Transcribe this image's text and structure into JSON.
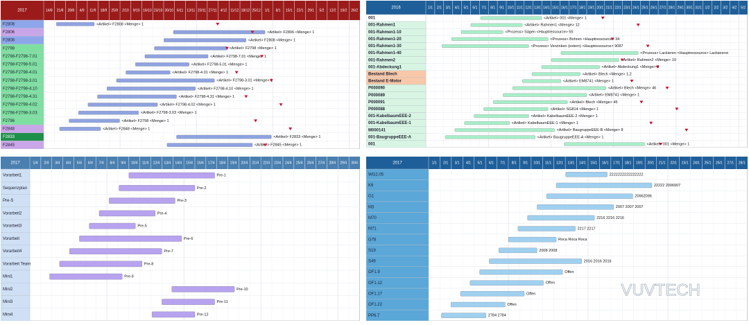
{
  "panels": [
    {
      "year": "2017",
      "header_color": "#9b1b1b",
      "bar_color": "#8fa3e0",
      "columns": [
        "14/8",
        "21/8",
        "28/8",
        "4/9",
        "11/9",
        "18/9",
        "25/9",
        "2/10",
        "9/10",
        "16/10",
        "23/10",
        "30/10",
        "6/11",
        "13/11",
        "20/11",
        "27/11",
        "4/12",
        "11/12",
        "18/12",
        "25/12",
        "1/1",
        "8/1",
        "15/1",
        "22/1",
        "29/1",
        "5/2",
        "12/2",
        "19/2",
        "26/2"
      ],
      "rows": [
        {
          "label": "F2808",
          "color": "#8da6ea",
          "bar": "<Artikel> F2808 <Menge> 1"
        },
        {
          "label": "F2806",
          "color": "#c9a6e8",
          "bar": "<Artikel> F2806 <Menge> 1"
        },
        {
          "label": "F2808",
          "color": "#8da6ea",
          "bar": "<Artikel> F2808 <Menge> 1"
        },
        {
          "label": "F2798",
          "color": "#7ee0a0",
          "bar": "<Artikel> F2798 <Menge> 1"
        },
        {
          "label": "F2798-F2798-7.01",
          "color": "#7ee0a0",
          "bar": "<Artikel> F2798-7.01 <Menge> 1"
        },
        {
          "label": "F2798-F2798-5.01",
          "color": "#7ee0a0",
          "bar": "<Artikel> F2798-5.01 <Menge> 1"
        },
        {
          "label": "F2798-F2798-4.01",
          "color": "#7ee0a0",
          "bar": "<Artikel> F2798-4.01 <Menge> 1"
        },
        {
          "label": "F2798-F2798-3.01",
          "color": "#7ee0a0",
          "bar": "<Artikel> F2798-3.01 <Menge> 1"
        },
        {
          "label": "F2798-F2798-4.10",
          "color": "#7ee0a0",
          "bar": "<Artikel> F2798-4.10 <Menge> 1"
        },
        {
          "label": "F2798-F2798-4.31",
          "color": "#7ee0a0",
          "bar": "<Artikel> F2798-4.31 <Menge> 1"
        },
        {
          "label": "F2798-F2798-4.02",
          "color": "#7ee0a0",
          "bar": "<Artikel> F2798-4.02 <Menge> 1"
        },
        {
          "label": "F2798-F2798-3.03",
          "color": "#7ee0a0",
          "bar": "<Artikel> F2798-3.03 <Menge> 1"
        },
        {
          "label": "F2796",
          "color": "#7ee0a0",
          "bar": "<Artikel> F2798 <Menge> 1"
        },
        {
          "label": "F2848",
          "color": "#c9a6e8",
          "bar": "<Artikel> F2848 <Menge> 1"
        },
        {
          "label": "F2833",
          "color": "#1e8f4a",
          "bar": "<Artikel> F2833 <Menge> 1"
        },
        {
          "label": "F2845",
          "color": "#c9a6e8",
          "bar": "<Artikel> F2845 <Menge> 1"
        }
      ]
    },
    {
      "year": "2016",
      "header_color": "#1f5f99",
      "bar_color": "#a8efc8",
      "columns": [
        "1/1",
        "2/1",
        "3/1",
        "4/1",
        "5/1",
        "6/1",
        "7/1",
        "8/1",
        "9/1",
        "10/1",
        "11/1",
        "12/1",
        "13/1",
        "14/1",
        "15/1",
        "16/1",
        "17/1",
        "18/1",
        "19/1",
        "20/1",
        "21/1",
        "22/1",
        "23/1",
        "24/1",
        "25/1",
        "26/1",
        "27/1",
        "28/1",
        "29/1",
        "30/1",
        "31/1",
        "1/2",
        "2/2",
        "3/2",
        "4/2",
        "5/2"
      ],
      "rows": [
        {
          "label": "001",
          "color": "#ffffff",
          "bar": "<Artikel> 001 <Menge> 1"
        },
        {
          "label": "001-Rahmen1",
          "color": "#d8f5e4",
          "bar": "<Artikel> Rahmen1 <Menge> 12"
        },
        {
          "label": "001-Rahmen1-10",
          "color": "#d8f5e4",
          "bar": "<Prozess> Sägen <Hauptressource> 55"
        },
        {
          "label": "001-Rahmen1-20",
          "color": "#d8f5e4",
          "bar": "<Prozess> Bohren <Hauptressource> 34"
        },
        {
          "label": "001-Rahmen1-30",
          "color": "#d8f5e4",
          "bar": "<Prozess> Verzinken (extern) <Hauptressource> 9087"
        },
        {
          "label": "001-Rahmen1-40",
          "color": "#d8f5e4",
          "bar": "<Prozess> Lackieren <Hauptressource> Lackiererei"
        },
        {
          "label": "001-Rahmen2",
          "color": "#d8f5e4",
          "bar": "<Artikel> Rahmen2 <Menge> 10"
        },
        {
          "label": "001-Abdeckung1",
          "color": "#d8f5e4",
          "bar": "<Artikel> Abdeckung1 <Menge> 5"
        },
        {
          "label": "Bestand Blech",
          "color": "#f8c8a8",
          "bar": "<Artikel> Blech <Menge> 1,2"
        },
        {
          "label": "Bestand E-Motor",
          "color": "#f8c8a8",
          "bar": "<Artikel> EM8741 <Menge> 1"
        },
        {
          "label": "P000090",
          "color": "#d8f5e4",
          "bar": "<Artikel> Blech <Menge> 46"
        },
        {
          "label": "P000089",
          "color": "#d8f5e4",
          "bar": "<Artikel> EM8741 <Menge> 1"
        },
        {
          "label": "P000091",
          "color": "#d8f5e4",
          "bar": "<Artikel> Blech <Menge> 45"
        },
        {
          "label": "P000088",
          "color": "#d8f5e4",
          "bar": "<Artikel> SG814 <Menge> 1"
        },
        {
          "label": "001-KabelbaumEEE-2",
          "color": "#d8f5e4",
          "bar": "<Artikel> KabelbaumEEE-2 <Menge> 1"
        },
        {
          "label": "001-KabelbaumEEE-1",
          "color": "#d8f5e4",
          "bar": "<Artikel> KabelbaumEEE-1 <Menge> 1"
        },
        {
          "label": "M000141",
          "color": "#d8f5e4",
          "bar": "<Artikel> BaugruppeEEE-B <Menge> 8"
        },
        {
          "label": "001-BaugruppeEEE-A",
          "color": "#d8f5e4",
          "bar": "<Artikel> BaugruppeEEE-A <Menge> 1"
        },
        {
          "label": "001",
          "color": "#d8f5e4",
          "bar": "<Artikel> 001 <Menge> 1"
        }
      ]
    },
    {
      "year": "2017",
      "header_color": "#4a7fb0",
      "bar_color": "#b7a3ef",
      "columns": [
        "1/4",
        "2/4",
        "3/4",
        "4/4",
        "5/4",
        "6/4",
        "7/4",
        "8/4",
        "9/4",
        "10/4",
        "11/4",
        "12/4",
        "13/4",
        "14/4",
        "15/4",
        "16/4",
        "17/4",
        "18/4",
        "19/4",
        "20/4",
        "21/4",
        "22/4",
        "23/4",
        "24/4",
        "25/4",
        "26/4",
        "27/4",
        "28/4",
        "29/4",
        "30/4"
      ],
      "rows": [
        {
          "label": "Vorarbeit1",
          "color": "#cfe0f5",
          "bar": "Pre-1"
        },
        {
          "label": "Sequenzplan",
          "color": "#cfe0f5",
          "bar": "Pre-2"
        },
        {
          "label": "Pre-S",
          "color": "#cfe0f5",
          "bar": "Pre-3"
        },
        {
          "label": "Vorarbeit2",
          "color": "#cfe0f5",
          "bar": "Pre-4"
        },
        {
          "label": "Vorarbeit3",
          "color": "#cfe0f5",
          "bar": "Pre-5"
        },
        {
          "label": "Vorarbeit",
          "color": "#cfe0f5",
          "bar": "Pre-6"
        },
        {
          "label": "Vorarbeit4",
          "color": "#cfe0f5",
          "bar": "Pre-7"
        },
        {
          "label": "Vorarbeit Team",
          "color": "#cfe0f5",
          "bar": "Pre-8"
        },
        {
          "label": "Mini1",
          "color": "#cfe0f5",
          "bar": "Pre-9"
        },
        {
          "label": "Mini2",
          "color": "#cfe0f5",
          "bar": "Pre-10"
        },
        {
          "label": "Mini3",
          "color": "#cfe0f5",
          "bar": "Pre-11"
        },
        {
          "label": "Mini4",
          "color": "#cfe0f5",
          "bar": "Pre-12"
        }
      ]
    },
    {
      "year": "2017",
      "header_color": "#1f5f99",
      "bar_color": "#9fd0f0",
      "columns": [
        "1/1",
        "2/1",
        "3/1",
        "4/1",
        "5/1",
        "6/1",
        "7/1",
        "8/1",
        "9/1",
        "10/1",
        "11/1",
        "12/1",
        "13/1",
        "14/1",
        "15/1",
        "16/1",
        "17/1",
        "18/1",
        "19/1",
        "20/1",
        "21/1",
        "22/1",
        "23/1",
        "24/1",
        "25/1",
        "26/1",
        "27/1",
        "28/1"
      ],
      "rows": [
        {
          "label": "WG2.05",
          "color": "#5aa7d8",
          "bar": "2222222222222222"
        },
        {
          "label": "K6",
          "color": "#5aa7d8",
          "bar": "22222 2006907"
        },
        {
          "label": "G1",
          "color": "#5aa7d8",
          "bar": "20962096"
        },
        {
          "label": "M3",
          "color": "#5aa7d8",
          "bar": "2007 2007 2007"
        },
        {
          "label": "M70",
          "color": "#5aa7d8",
          "bar": "2216 2216 2216"
        },
        {
          "label": "M71",
          "color": "#5aa7d8",
          "bar": "2217 2217"
        },
        {
          "label": "G78",
          "color": "#5aa7d8",
          "bar": "Roca Roca Roca"
        },
        {
          "label": "S19",
          "color": "#5aa7d8",
          "bar": "2008 2008"
        },
        {
          "label": "S49",
          "color": "#5aa7d8",
          "bar": "2016 2016 2016"
        },
        {
          "label": "OF1.9",
          "color": "#5aa7d8",
          "bar": "Offen"
        },
        {
          "label": "OF1.12",
          "color": "#5aa7d8",
          "bar": "Offen"
        },
        {
          "label": "OF1.17",
          "color": "#5aa7d8",
          "bar": "Offen"
        },
        {
          "label": "OF1.22",
          "color": "#5aa7d8",
          "bar": "Offen"
        },
        {
          "label": "PP6.7",
          "color": "#5aa7d8",
          "bar": "2784 2784"
        }
      ]
    }
  ],
  "watermark": "VUVTECH"
}
